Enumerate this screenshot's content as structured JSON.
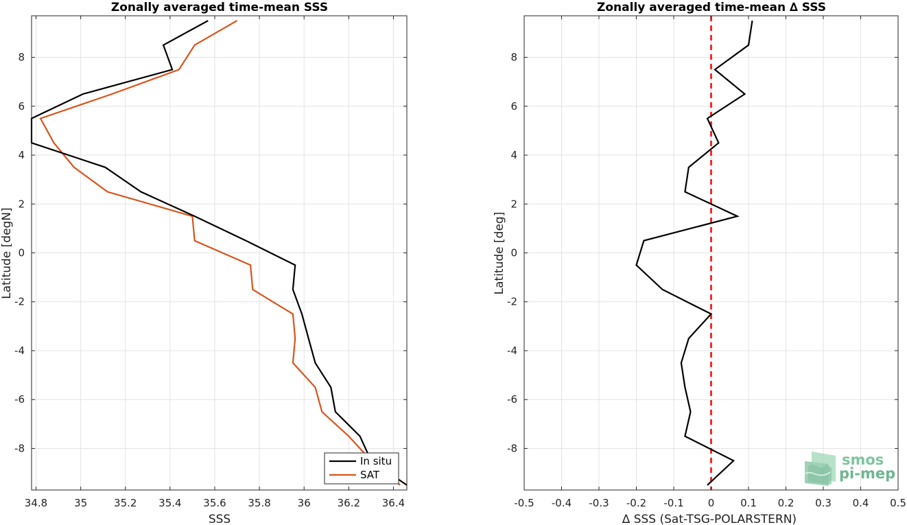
{
  "chart_data": [
    {
      "type": "line",
      "title": "Zonally averaged time-mean SSS",
      "xlabel": "SSS",
      "ylabel": "Latitude [degN]",
      "xlim": [
        34.78,
        36.46
      ],
      "ylim": [
        -9.7,
        9.7
      ],
      "xticks": [
        "34.8",
        "35",
        "35.2",
        "35.4",
        "35.6",
        "35.8",
        "36",
        "36.2",
        "36.4"
      ],
      "xtick_values": [
        34.8,
        35.0,
        35.2,
        35.4,
        35.6,
        35.8,
        36.0,
        36.2,
        36.4
      ],
      "yticks": [
        "8",
        "6",
        "4",
        "2",
        "0",
        "-2",
        "-4",
        "-6",
        "-8"
      ],
      "ytick_values": [
        8,
        6,
        4,
        2,
        0,
        -2,
        -4,
        -6,
        -8
      ],
      "grid": true,
      "legend_position": "bottom-right",
      "series": [
        {
          "name": "In situ",
          "color": "#000000",
          "points": [
            [
              35.57,
              9.5
            ],
            [
              35.37,
              8.5
            ],
            [
              35.41,
              7.5
            ],
            [
              35.01,
              6.5
            ],
            [
              34.78,
              5.5
            ],
            [
              34.78,
              4.5
            ],
            [
              35.11,
              3.5
            ],
            [
              35.27,
              2.5
            ],
            [
              35.51,
              1.5
            ],
            [
              35.74,
              0.5
            ],
            [
              35.96,
              -0.5
            ],
            [
              35.95,
              -1.5
            ],
            [
              35.99,
              -2.5
            ],
            [
              36.02,
              -3.5
            ],
            [
              36.05,
              -4.5
            ],
            [
              36.12,
              -5.5
            ],
            [
              36.14,
              -6.5
            ],
            [
              36.25,
              -7.5
            ],
            [
              36.3,
              -8.5
            ],
            [
              36.46,
              -9.5
            ]
          ]
        },
        {
          "name": "SAT",
          "color": "#d95319",
          "points": [
            [
              35.7,
              9.5
            ],
            [
              35.51,
              8.5
            ],
            [
              35.44,
              7.5
            ],
            [
              35.14,
              6.5
            ],
            [
              34.82,
              5.5
            ],
            [
              34.88,
              4.5
            ],
            [
              34.97,
              3.5
            ],
            [
              35.12,
              2.5
            ],
            [
              35.5,
              1.5
            ],
            [
              35.51,
              0.5
            ],
            [
              35.76,
              -0.5
            ],
            [
              35.77,
              -1.5
            ],
            [
              35.95,
              -2.5
            ],
            [
              35.96,
              -3.5
            ],
            [
              35.95,
              -4.5
            ],
            [
              36.05,
              -5.5
            ],
            [
              36.08,
              -6.5
            ],
            [
              36.2,
              -7.5
            ],
            [
              36.3,
              -8.5
            ],
            [
              36.43,
              -9.5
            ]
          ]
        }
      ]
    },
    {
      "type": "line",
      "title": "Zonally averaged time-mean ∆ SSS",
      "xlabel": "∆ SSS (Sat-TSG-POLARSTERN)",
      "ylabel": "Latitude [deg]",
      "xlim": [
        -0.5,
        0.5
      ],
      "ylim": [
        -9.7,
        9.7
      ],
      "xticks": [
        "-0.5",
        "-0.4",
        "-0.3",
        "-0.2",
        "-0.1",
        "0",
        "0.1",
        "0.2",
        "0.3",
        "0.4",
        "0.5"
      ],
      "xtick_values": [
        -0.5,
        -0.4,
        -0.3,
        -0.2,
        -0.1,
        0,
        0.1,
        0.2,
        0.3,
        0.4,
        0.5
      ],
      "yticks": [
        "8",
        "6",
        "4",
        "2",
        "0",
        "-2",
        "-4",
        "-6",
        "-8"
      ],
      "ytick_values": [
        8,
        6,
        4,
        2,
        0,
        -2,
        -4,
        -6,
        -8
      ],
      "grid": true,
      "reference_line": {
        "x": 0,
        "color": "#ff0000",
        "style": "dashed"
      },
      "series": [
        {
          "color": "#000000",
          "points": [
            [
              0.11,
              9.5
            ],
            [
              0.1,
              8.5
            ],
            [
              0.01,
              7.5
            ],
            [
              0.09,
              6.5
            ],
            [
              -0.01,
              5.5
            ],
            [
              0.02,
              4.5
            ],
            [
              -0.06,
              3.5
            ],
            [
              -0.07,
              2.5
            ],
            [
              0.07,
              1.5
            ],
            [
              -0.18,
              0.5
            ],
            [
              -0.2,
              -0.5
            ],
            [
              -0.13,
              -1.5
            ],
            [
              0.0,
              -2.5
            ],
            [
              -0.06,
              -3.5
            ],
            [
              -0.08,
              -4.5
            ],
            [
              -0.07,
              -5.5
            ],
            [
              -0.055,
              -6.5
            ],
            [
              -0.07,
              -7.5
            ],
            [
              0.06,
              -8.5
            ],
            [
              -0.01,
              -9.5
            ]
          ]
        }
      ]
    }
  ],
  "legend": {
    "items": [
      "In situ",
      "SAT"
    ]
  },
  "logo": {
    "line1": "smos",
    "line2": "pi-mep"
  }
}
